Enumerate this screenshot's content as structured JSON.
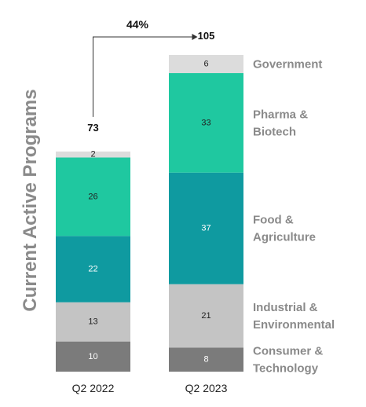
{
  "chart_data": {
    "type": "bar",
    "stacked": true,
    "categories": [
      "Q2 2022",
      "Q2 2023"
    ],
    "ylabel": "Current Active Programs",
    "series": [
      {
        "name": "Consumer & Technology",
        "values": [
          10,
          8
        ],
        "color": "#7b7b7b"
      },
      {
        "name": "Industrial & Environmental",
        "values": [
          13,
          21
        ],
        "color": "#c4c4c4"
      },
      {
        "name": "Food & Agriculture",
        "values": [
          22,
          37
        ],
        "color": "#0f9aa0"
      },
      {
        "name": "Pharma & Biotech",
        "values": [
          26,
          33
        ],
        "color": "#1fc8a0"
      },
      {
        "name": "Government",
        "values": [
          2,
          6
        ],
        "color": "#dcdcdc"
      }
    ],
    "totals": [
      73,
      105
    ],
    "growth_label": "44%",
    "legend_position": "right, aligned to segments",
    "grid": false
  }
}
